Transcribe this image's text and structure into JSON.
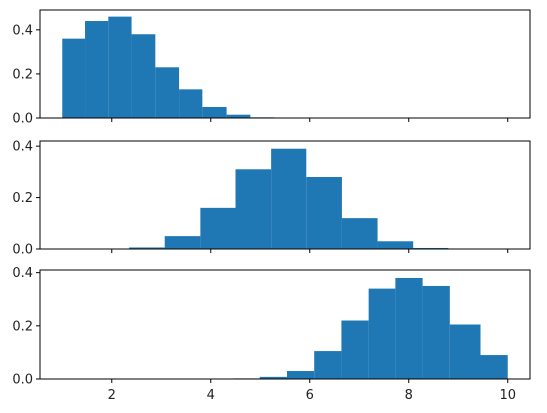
{
  "chart_data": [
    {
      "type": "bar",
      "xlim": [
        0.55,
        10.45
      ],
      "ylim": [
        0,
        0.49
      ],
      "xticks": [
        2,
        4,
        6,
        8,
        10
      ],
      "yticks": [
        0.0,
        0.2,
        0.4
      ],
      "show_xtick_labels": false,
      "bar_color": "#1f77b4",
      "bins": [
        [
          1.0,
          1.46,
          0.36
        ],
        [
          1.46,
          1.93,
          0.44
        ],
        [
          1.93,
          2.4,
          0.46
        ],
        [
          2.4,
          2.88,
          0.38
        ],
        [
          2.88,
          3.36,
          0.23
        ],
        [
          3.36,
          3.83,
          0.13
        ],
        [
          3.83,
          4.32,
          0.05
        ],
        [
          4.32,
          4.8,
          0.015
        ],
        [
          4.8,
          5.28,
          0.003
        ]
      ]
    },
    {
      "type": "bar",
      "xlim": [
        0.55,
        10.45
      ],
      "ylim": [
        0,
        0.42
      ],
      "xticks": [
        2,
        4,
        6,
        8,
        10
      ],
      "yticks": [
        0.0,
        0.2,
        0.4
      ],
      "show_xtick_labels": false,
      "bar_color": "#1f77b4",
      "bins": [
        [
          2.35,
          3.07,
          0.006
        ],
        [
          3.07,
          3.79,
          0.05
        ],
        [
          3.79,
          4.5,
          0.16
        ],
        [
          4.5,
          5.22,
          0.31
        ],
        [
          5.22,
          5.93,
          0.39
        ],
        [
          5.93,
          6.65,
          0.28
        ],
        [
          6.65,
          7.37,
          0.12
        ],
        [
          7.37,
          8.09,
          0.03
        ],
        [
          8.09,
          8.8,
          0.004
        ]
      ]
    },
    {
      "type": "bar",
      "xlim": [
        0.55,
        10.45
      ],
      "ylim": [
        0,
        0.41
      ],
      "xticks": [
        2,
        4,
        6,
        8,
        10
      ],
      "yticks": [
        0.0,
        0.2,
        0.4
      ],
      "show_xtick_labels": true,
      "bar_color": "#1f77b4",
      "bins": [
        [
          4.45,
          4.99,
          0.002
        ],
        [
          4.99,
          5.54,
          0.008
        ],
        [
          5.54,
          6.09,
          0.03
        ],
        [
          6.09,
          6.64,
          0.105
        ],
        [
          6.64,
          7.19,
          0.22
        ],
        [
          7.19,
          7.73,
          0.34
        ],
        [
          7.73,
          8.28,
          0.38
        ],
        [
          8.28,
          8.83,
          0.35
        ],
        [
          8.83,
          9.45,
          0.205
        ],
        [
          9.45,
          10.0,
          0.09
        ]
      ]
    }
  ]
}
